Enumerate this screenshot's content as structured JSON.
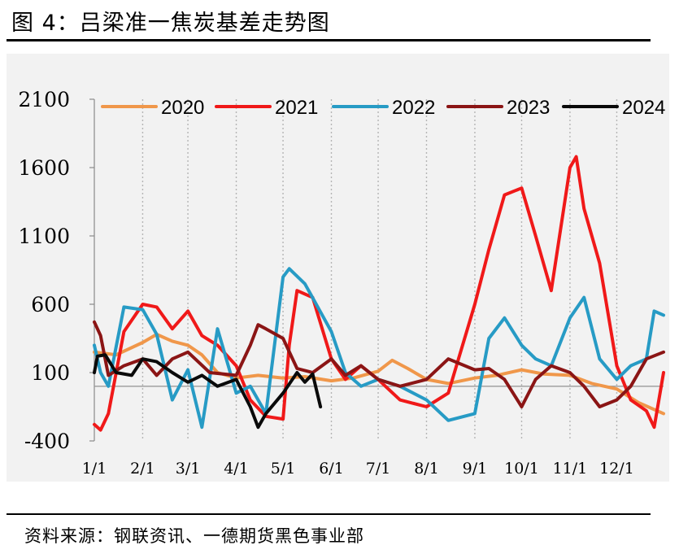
{
  "figure": {
    "title": "图 4：吕梁准一焦炭基差走势图",
    "source": "资料来源：钢联资讯、一德期货黑色事业部"
  },
  "chart_data": {
    "type": "line",
    "title": "",
    "xlabel": "",
    "ylabel": "",
    "ylim": [
      -400,
      2100
    ],
    "y_ticks": [
      "2100",
      "1600",
      "1100",
      "600",
      "100",
      "-400"
    ],
    "x_ticks": [
      "1/1",
      "2/1",
      "3/1",
      "4/1",
      "5/1",
      "6/1",
      "7/1",
      "8/1",
      "9/1",
      "10/1",
      "11/1",
      "12/1"
    ],
    "grid": "vertical dotted lines at month starts",
    "legend_position": "top",
    "series": [
      {
        "name": "2020",
        "color": "#F0974A",
        "x": [
          "1/1",
          "1/15",
          "2/1",
          "2/10",
          "2/20",
          "3/1",
          "3/10",
          "3/20",
          "4/1",
          "4/15",
          "5/1",
          "5/15",
          "6/1",
          "6/15",
          "7/1",
          "7/10",
          "7/20",
          "8/1",
          "8/15",
          "9/1",
          "9/15",
          "10/1",
          "10/15",
          "11/1",
          "11/15",
          "12/1",
          "12/15",
          "12/31"
        ],
        "values": [
          250,
          230,
          320,
          380,
          330,
          300,
          230,
          100,
          60,
          80,
          60,
          70,
          40,
          60,
          110,
          190,
          130,
          50,
          20,
          60,
          80,
          120,
          90,
          80,
          20,
          -20,
          -120,
          -200
        ]
      },
      {
        "name": "2021",
        "color": "#F01919",
        "x": [
          "1/1",
          "1/5",
          "1/10",
          "1/20",
          "2/1",
          "2/10",
          "2/20",
          "3/1",
          "3/10",
          "3/20",
          "4/1",
          "4/10",
          "4/20",
          "5/1",
          "5/5",
          "5/10",
          "5/20",
          "6/1",
          "6/10",
          "6/20",
          "7/1",
          "7/15",
          "8/1",
          "8/15",
          "9/1",
          "9/10",
          "9/20",
          "10/1",
          "10/10",
          "10/20",
          "11/1",
          "11/5",
          "11/10",
          "11/20",
          "12/1",
          "12/10",
          "12/20",
          "12/25",
          "12/31"
        ],
        "values": [
          -280,
          -320,
          -200,
          400,
          600,
          580,
          420,
          550,
          370,
          300,
          150,
          -100,
          -220,
          -240,
          300,
          700,
          650,
          200,
          50,
          150,
          50,
          -100,
          -150,
          -50,
          600,
          1000,
          1400,
          1450,
          1100,
          700,
          1600,
          1680,
          1300,
          900,
          150,
          -100,
          -180,
          -300,
          100
        ]
      },
      {
        "name": "2022",
        "color": "#279BC5",
        "x": [
          "1/1",
          "1/5",
          "1/10",
          "1/20",
          "2/1",
          "2/10",
          "2/20",
          "3/1",
          "3/10",
          "3/20",
          "4/1",
          "4/10",
          "4/20",
          "5/1",
          "5/5",
          "5/15",
          "6/1",
          "6/10",
          "6/20",
          "7/1",
          "7/15",
          "8/1",
          "8/15",
          "9/1",
          "9/10",
          "9/20",
          "10/1",
          "10/10",
          "10/20",
          "11/1",
          "11/10",
          "11/20",
          "12/1",
          "12/10",
          "12/20",
          "12/25",
          "12/31"
        ],
        "values": [
          300,
          100,
          0,
          580,
          560,
          380,
          -100,
          120,
          -300,
          420,
          -50,
          0,
          -200,
          800,
          860,
          750,
          400,
          100,
          0,
          50,
          0,
          -100,
          -250,
          -200,
          350,
          500,
          300,
          200,
          150,
          500,
          650,
          200,
          50,
          150,
          200,
          550,
          520
        ]
      },
      {
        "name": "2023",
        "color": "#8B1515",
        "x": [
          "1/1",
          "1/5",
          "1/10",
          "1/20",
          "2/1",
          "2/10",
          "2/20",
          "3/1",
          "3/15",
          "4/1",
          "4/10",
          "4/15",
          "4/20",
          "5/1",
          "5/10",
          "5/20",
          "6/1",
          "6/10",
          "6/20",
          "7/1",
          "7/15",
          "8/1",
          "8/15",
          "9/1",
          "9/10",
          "9/20",
          "10/1",
          "10/10",
          "10/20",
          "11/1",
          "11/10",
          "11/20",
          "12/1",
          "12/10",
          "12/20",
          "12/31"
        ],
        "values": [
          470,
          370,
          80,
          150,
          200,
          80,
          200,
          250,
          100,
          80,
          300,
          450,
          420,
          350,
          130,
          100,
          200,
          80,
          150,
          50,
          0,
          50,
          200,
          120,
          130,
          50,
          -150,
          50,
          150,
          100,
          0,
          -150,
          -100,
          0,
          200,
          250
        ]
      },
      {
        "name": "2024",
        "color": "#0A0A0A",
        "x": [
          "1/1",
          "1/3",
          "1/8",
          "1/15",
          "1/25",
          "2/1",
          "2/10",
          "2/20",
          "3/1",
          "3/10",
          "3/20",
          "4/1",
          "4/10",
          "4/15",
          "4/20",
          "5/1",
          "5/10",
          "5/15",
          "5/20",
          "5/25"
        ],
        "values": [
          100,
          220,
          230,
          100,
          80,
          200,
          180,
          100,
          30,
          80,
          0,
          50,
          -150,
          -300,
          -200,
          -50,
          100,
          30,
          90,
          -150
        ]
      }
    ]
  }
}
